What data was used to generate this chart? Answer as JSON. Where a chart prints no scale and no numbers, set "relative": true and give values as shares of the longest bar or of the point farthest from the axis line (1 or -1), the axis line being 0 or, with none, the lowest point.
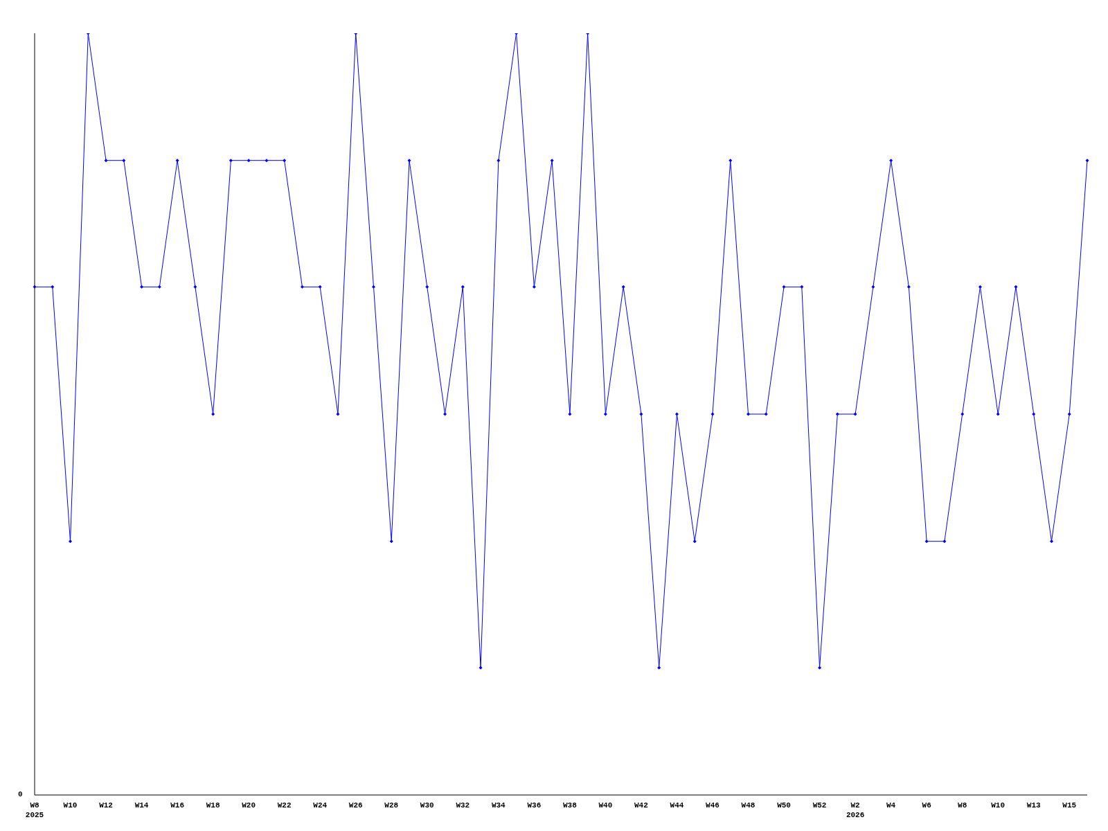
{
  "chart_data": {
    "type": "line",
    "relative": true,
    "marker": "diamond",
    "line_style": "solid",
    "grid": false,
    "legend": false,
    "annotations": [
      "0"
    ],
    "categories": [
      "W8\n2025",
      null,
      "W10",
      null,
      "W12",
      null,
      "W14",
      null,
      "W16",
      null,
      "W18",
      null,
      "W20",
      null,
      "W22",
      null,
      "W24",
      null,
      "W26",
      null,
      "W28",
      null,
      "W30",
      null,
      "W32",
      null,
      "W34",
      null,
      "W36",
      null,
      "W38",
      null,
      "W40",
      null,
      "W42",
      null,
      "W44",
      null,
      "W46",
      null,
      "W48",
      null,
      "W50",
      null,
      "W52",
      null,
      "W2\n2026",
      null,
      "W4",
      null,
      "W6",
      null,
      "W8",
      null,
      "W10",
      null,
      "W13",
      null,
      "W15",
      null
    ],
    "series": [
      {
        "color": "#0000ff",
        "values": [
          0.667,
          0.667,
          0.333,
          1,
          0.833,
          0.833,
          0.667,
          0.667,
          0.833,
          0.667,
          0.5,
          0.833,
          0.833,
          0.833,
          0.833,
          0.667,
          0.667,
          0.5,
          1,
          0.667,
          0.333,
          0.833,
          0.667,
          0.5,
          0.667,
          0.167,
          0.833,
          1,
          0.667,
          0.833,
          0.5,
          1,
          0.5,
          0.667,
          0.5,
          0.167,
          0.5,
          0.333,
          0.5,
          0.833,
          0.5,
          0.5,
          0.667,
          0.667,
          0.167,
          0.5,
          0.5,
          0.667,
          0.833,
          0.667,
          0.333,
          0.333,
          0.5,
          0.667,
          0.5,
          0.667,
          0.5,
          0.333,
          0.5,
          0.833
        ]
      }
    ]
  }
}
